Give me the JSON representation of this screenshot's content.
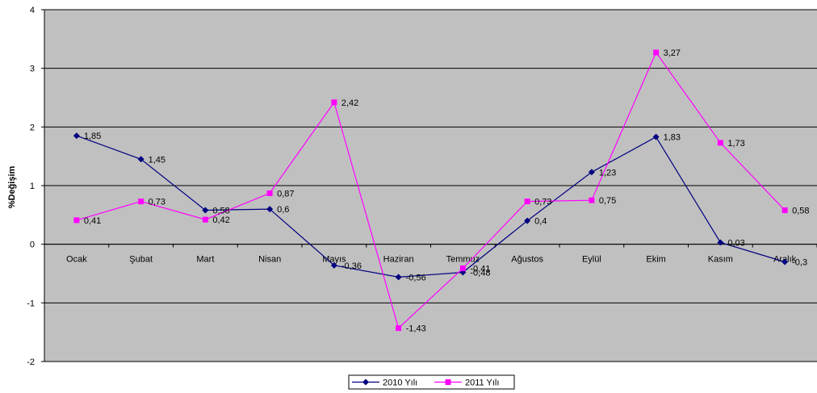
{
  "chart_data": {
    "type": "line",
    "title": "",
    "xlabel": "",
    "ylabel": "%Değişim",
    "ylim": [
      -2,
      4
    ],
    "yticks": [
      -2,
      -1,
      0,
      1,
      2,
      3,
      4
    ],
    "grid": true,
    "legend": "bottom",
    "plot_background": "#c0c0c0",
    "categories": [
      "Ocak",
      "Şubat",
      "Mart",
      "Nisan",
      "Mayıs",
      "Haziran",
      "Temmuz",
      "Ağustos",
      "Eylül",
      "Ekim",
      "Kasım",
      "Aralık"
    ],
    "series": [
      {
        "name": "2010 Yılı",
        "color": "#000080",
        "marker": "diamond",
        "values": [
          1.85,
          1.45,
          0.58,
          0.6,
          -0.36,
          -0.56,
          -0.48,
          0.4,
          1.23,
          1.83,
          0.03,
          -0.3
        ],
        "labels": [
          "1,85",
          "1,45",
          "0,58",
          "0,6",
          "-0,36",
          "-0,56",
          "-0,48",
          "0,4",
          "1,23",
          "1,83",
          "0,03",
          "-0,3"
        ]
      },
      {
        "name": "2011 Yılı",
        "color": "#ff00ff",
        "marker": "square",
        "values": [
          0.41,
          0.73,
          0.42,
          0.87,
          2.42,
          -1.43,
          -0.41,
          0.73,
          0.75,
          3.27,
          1.73,
          0.58
        ],
        "labels": [
          "0,41",
          "0,73",
          "0,42",
          "0,87",
          "2,42",
          "-1,43",
          "-0,41",
          "0,73",
          "0,75",
          "3,27",
          "1,73",
          "0,58"
        ]
      }
    ]
  }
}
